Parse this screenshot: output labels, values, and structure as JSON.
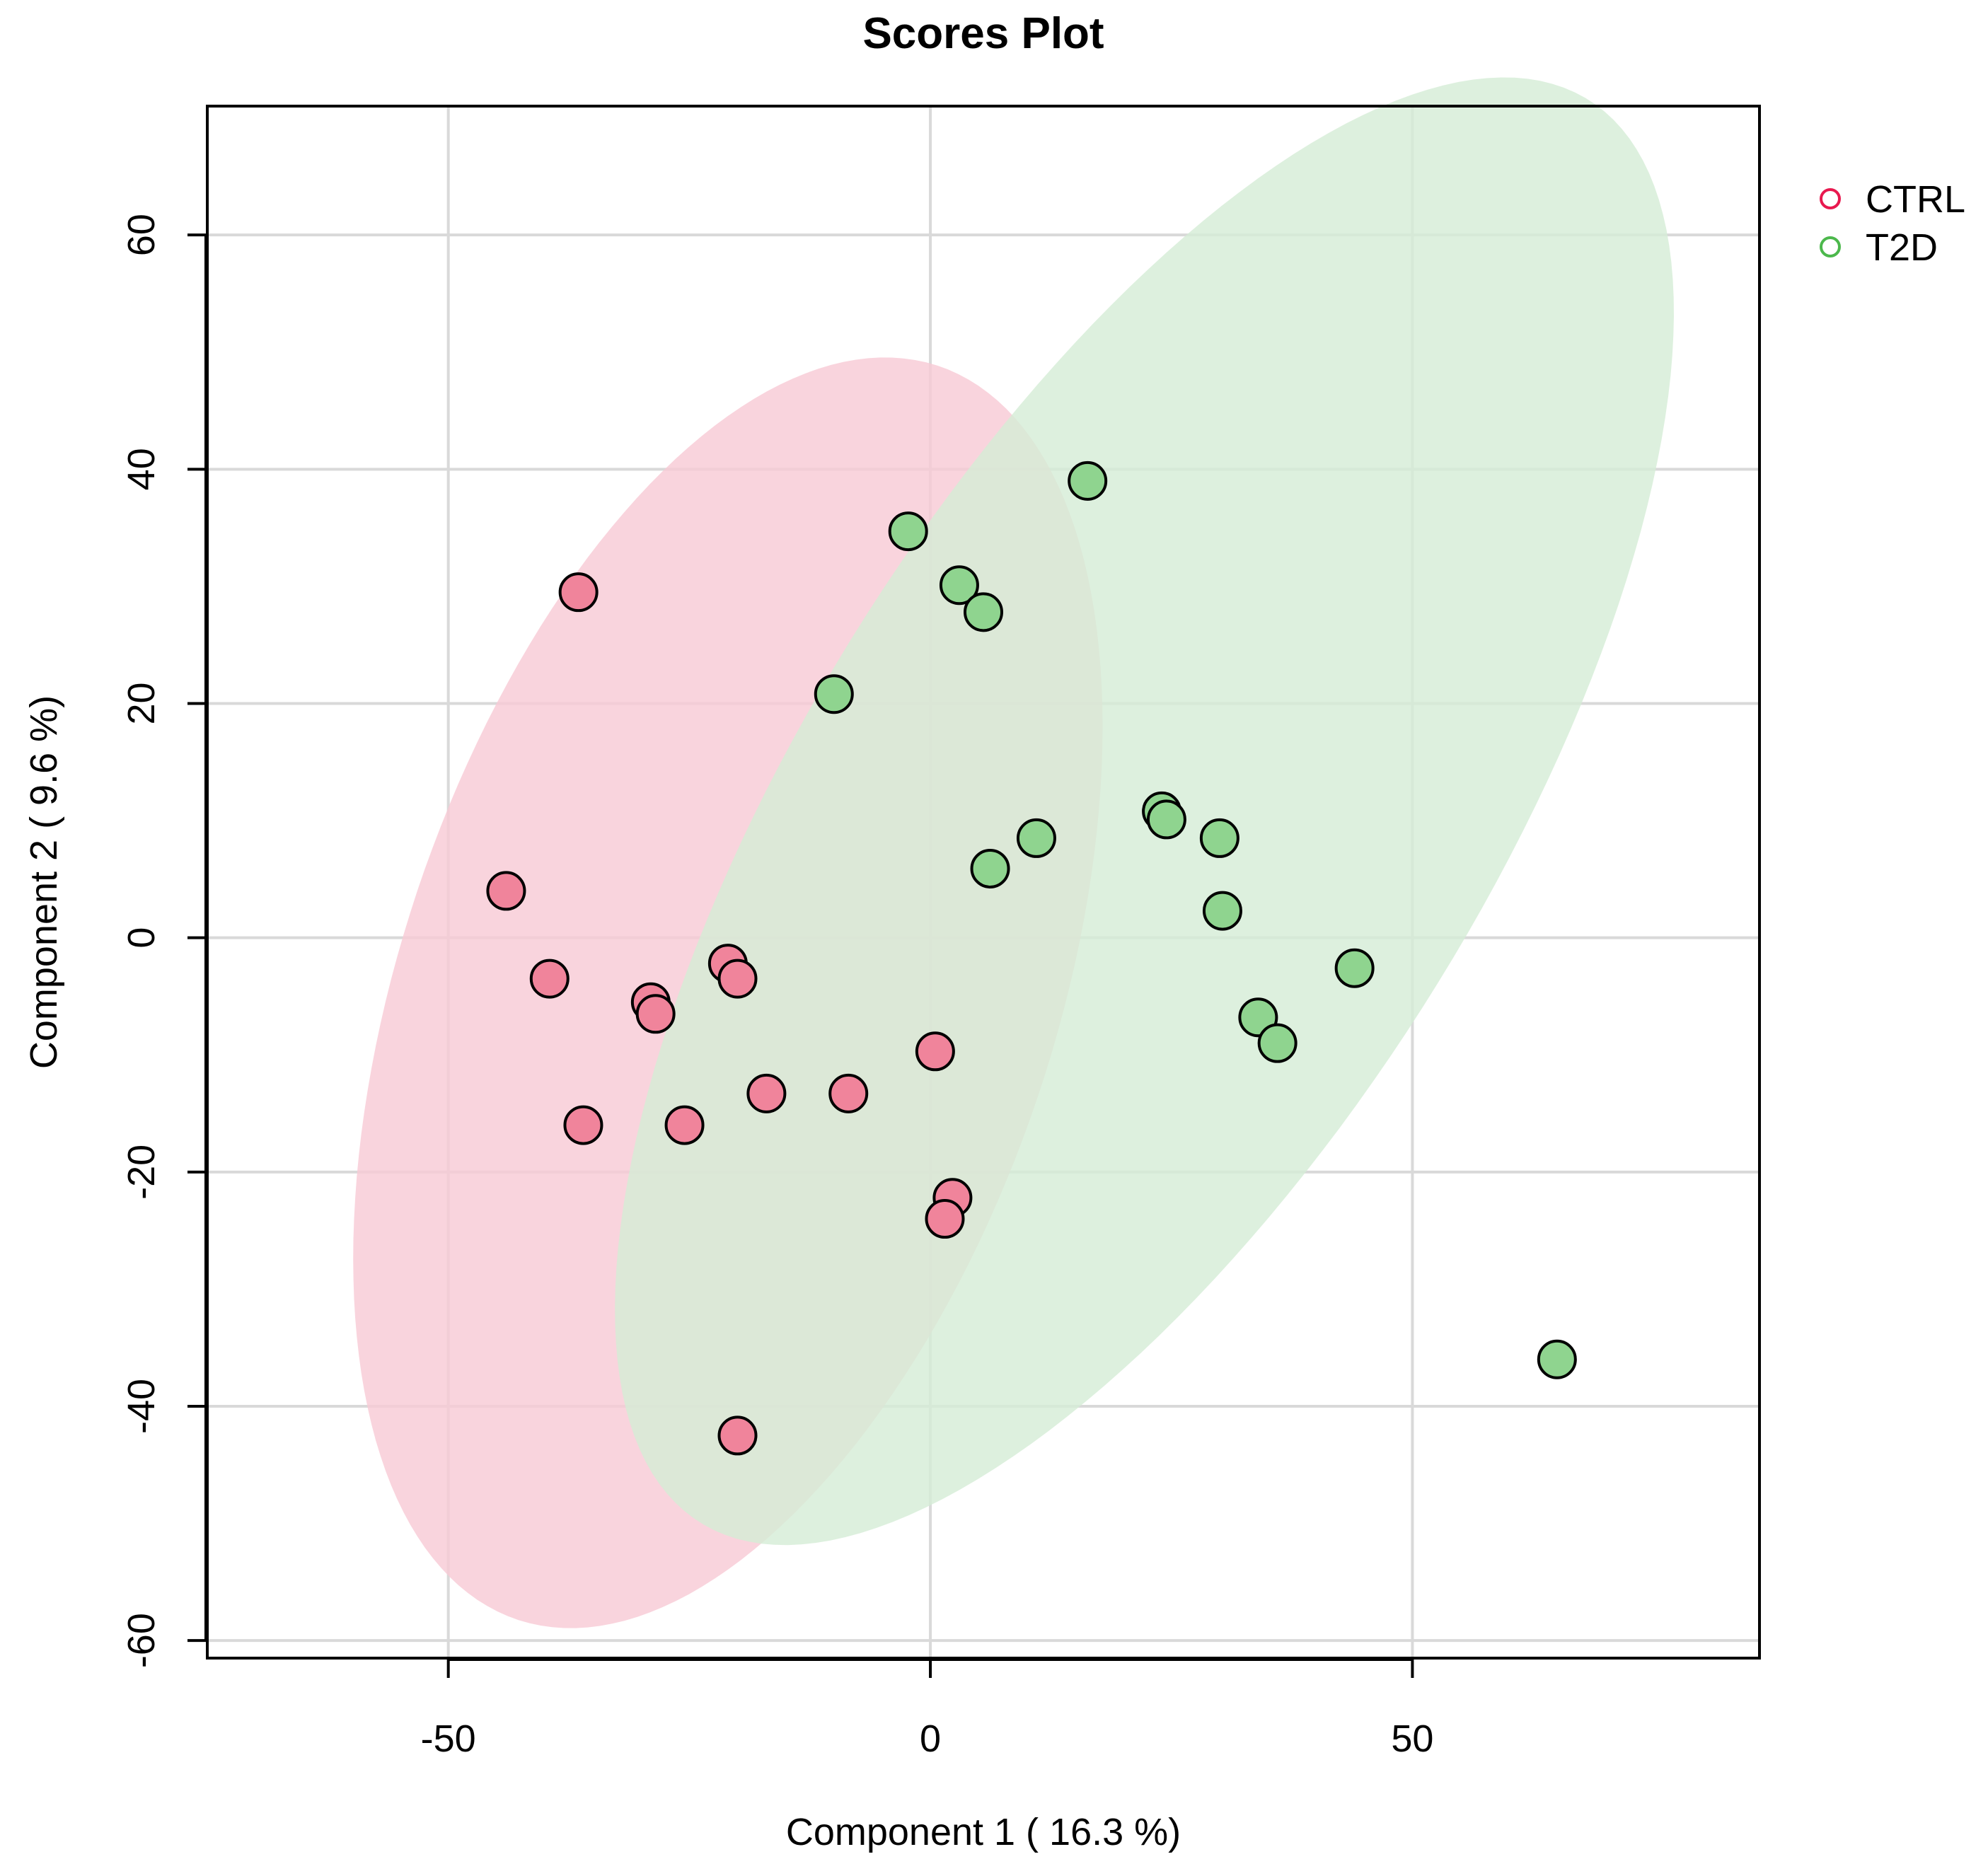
{
  "chart_data": {
    "type": "scatter",
    "title": "Scores Plot",
    "xlabel": "Component 1 ( 16.3 %)",
    "ylabel": "Component 2 ( 9.6 %)",
    "xlim": [
      -75,
      86
    ],
    "ylim": [
      -61.5,
      71
    ],
    "xticks": [
      -50,
      0,
      50
    ],
    "yticks": [
      -60,
      -40,
      -20,
      0,
      20,
      40,
      60
    ],
    "xtick_labels": [
      "-50",
      "0",
      "50"
    ],
    "ytick_labels": [
      "-60",
      "-40",
      "-20",
      "0",
      "20",
      "40",
      "60"
    ],
    "grid": true,
    "legend_position": "top-right outside",
    "series": [
      {
        "name": "CTRL",
        "legend_color": "#e8194f",
        "point_color": "#f0849b",
        "ellipse_color": "#f7c9d5",
        "ellipse": {
          "center": [
            -21,
            -4.7
          ],
          "semi_axes": [
            58,
            33
          ],
          "angle_deg": 64.5
        },
        "points": [
          {
            "x": -36.5,
            "y": 29.5
          },
          {
            "x": -44,
            "y": 4
          },
          {
            "x": -39.5,
            "y": -3.5
          },
          {
            "x": -29,
            "y": -5.5
          },
          {
            "x": -28.5,
            "y": -6.5
          },
          {
            "x": -21,
            "y": -2.2
          },
          {
            "x": -20,
            "y": -3.5
          },
          {
            "x": -36,
            "y": -16
          },
          {
            "x": -25.5,
            "y": -16
          },
          {
            "x": -17,
            "y": -13.3
          },
          {
            "x": -8.5,
            "y": -13.3
          },
          {
            "x": 0.5,
            "y": -9.7
          },
          {
            "x": 2.3,
            "y": -22.2
          },
          {
            "x": 1.5,
            "y": -24
          },
          {
            "x": -20,
            "y": -42.5
          }
        ]
      },
      {
        "name": "T2D",
        "legend_color": "#4cb84c",
        "point_color": "#8fd48f",
        "ellipse_color": "#d5ecd6",
        "ellipse": {
          "center": [
            22.2,
            10.8
          ],
          "semi_axes": [
            76.5,
            33
          ],
          "angle_deg": 50.5
        },
        "points": [
          {
            "x": 16.3,
            "y": 39
          },
          {
            "x": -2.3,
            "y": 34.7
          },
          {
            "x": 3,
            "y": 30.1
          },
          {
            "x": 5.5,
            "y": 27.8
          },
          {
            "x": -10,
            "y": 20.8
          },
          {
            "x": 24,
            "y": 10.8
          },
          {
            "x": 24.5,
            "y": 10.1
          },
          {
            "x": 30,
            "y": 8.5
          },
          {
            "x": 11,
            "y": 8.5
          },
          {
            "x": 6.2,
            "y": 5.9
          },
          {
            "x": 30.3,
            "y": 2.3
          },
          {
            "x": 44,
            "y": -2.6
          },
          {
            "x": 34,
            "y": -6.8
          },
          {
            "x": 36,
            "y": -9
          },
          {
            "x": 65,
            "y": -36
          }
        ]
      }
    ]
  }
}
